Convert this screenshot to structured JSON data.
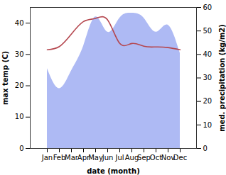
{
  "chart_data": {
    "type": "line",
    "x_label": "date (month)",
    "y_label": "max temp (C)",
    "y2_label": "med. precipitation (kg/m2)",
    "categories": [
      "Jan",
      "Feb",
      "Mar",
      "Apr",
      "May",
      "Jun",
      "Jul",
      "Aug",
      "Sep",
      "Oct",
      "Nov",
      "Dec"
    ],
    "series": [
      {
        "type": "line",
        "color": "#b5474f",
        "values": [
          31.5,
          32.5,
          36.5,
          40.5,
          41.5,
          41,
          33.5,
          33.5,
          32.6,
          32.4,
          32.2,
          31.5
        ]
      },
      {
        "type": "area",
        "axis": "y2",
        "color": "#aebaf4",
        "values": [
          34,
          25.5,
          33,
          43.5,
          56,
          49.5,
          55.5,
          57.6,
          55.5,
          49.5,
          52.5,
          40.5
        ]
      }
    ],
    "ylim": [
      0,
      45
    ],
    "yticks": [
      0,
      10,
      20,
      30,
      40
    ],
    "y2lim": [
      0,
      60
    ],
    "y2ticks": [
      0,
      10,
      20,
      30,
      40,
      50,
      60
    ],
    "grid": false
  }
}
